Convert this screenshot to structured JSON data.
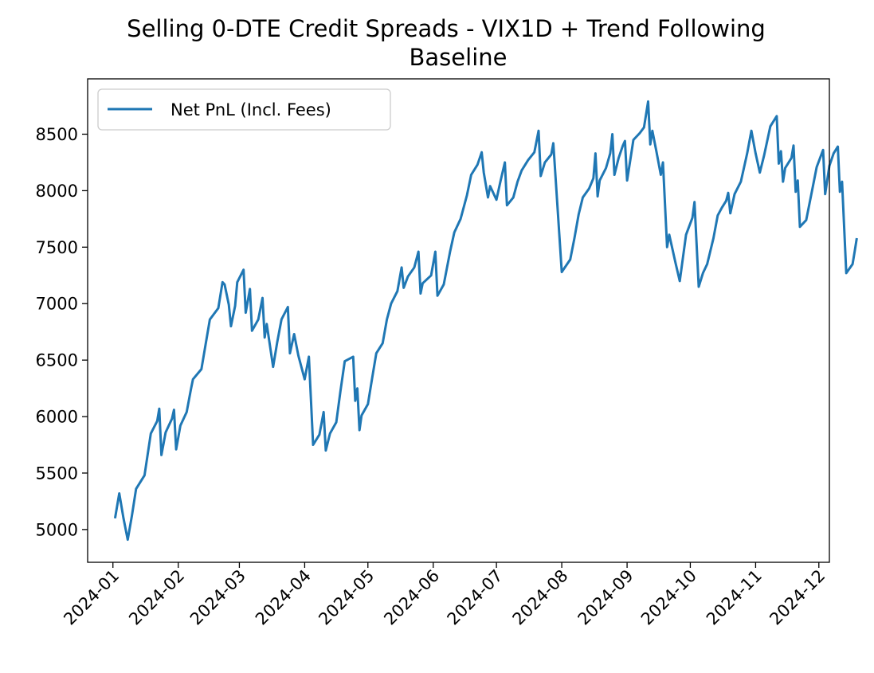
{
  "chart_data": {
    "type": "line",
    "title": "Selling 0-DTE Credit Spreads - VIX1D + Trend Following",
    "subtitle": "Baseline",
    "xlabel": "",
    "ylabel": "",
    "grid": false,
    "legend": {
      "placement": "upper-left",
      "entries": [
        "Net PnL (Incl. Fees)"
      ]
    },
    "line_color": "#1f77b4",
    "xlim": [
      "2023-12-20",
      "2024-12-06"
    ],
    "ylim": [
      4710,
      8990
    ],
    "x_ticks": [
      "2024-01-01",
      "2024-02-01",
      "2024-03-01",
      "2024-04-01",
      "2024-05-01",
      "2024-06-01",
      "2024-07-01",
      "2024-08-01",
      "2024-09-01",
      "2024-10-01",
      "2024-11-01",
      "2024-12-01"
    ],
    "x_tick_labels": [
      "2024-01",
      "2024-02",
      "2024-03",
      "2024-04",
      "2024-05",
      "2024-06",
      "2024-07",
      "2024-08",
      "2024-09",
      "2024-10",
      "2024-11",
      "2024-12"
    ],
    "y_ticks": [
      5000,
      5500,
      6000,
      6500,
      7000,
      7500,
      8000,
      8500
    ],
    "y_tick_labels": [
      "5000",
      "5500",
      "6000",
      "6500",
      "7000",
      "7500",
      "8000",
      "8500"
    ],
    "series": [
      {
        "name": "Net PnL (Incl. Fees)",
        "points": [
          [
            "2024-01-02",
            5100
          ],
          [
            "2024-01-04",
            5320
          ],
          [
            "2024-01-06",
            5100
          ],
          [
            "2024-01-08",
            4910
          ],
          [
            "2024-01-10",
            5120
          ],
          [
            "2024-01-12",
            5360
          ],
          [
            "2024-01-16",
            5480
          ],
          [
            "2024-01-19",
            5850
          ],
          [
            "2024-01-22",
            5960
          ],
          [
            "2024-01-23",
            6070
          ],
          [
            "2024-01-24",
            5660
          ],
          [
            "2024-01-26",
            5860
          ],
          [
            "2024-01-29",
            5980
          ],
          [
            "2024-01-30",
            6060
          ],
          [
            "2024-01-31",
            5710
          ],
          [
            "2024-02-02",
            5920
          ],
          [
            "2024-02-05",
            6040
          ],
          [
            "2024-02-07",
            6240
          ],
          [
            "2024-02-08",
            6330
          ],
          [
            "2024-02-12",
            6420
          ],
          [
            "2024-02-14",
            6640
          ],
          [
            "2024-02-16",
            6860
          ],
          [
            "2024-02-20",
            6960
          ],
          [
            "2024-02-22",
            7190
          ],
          [
            "2024-02-23",
            7170
          ],
          [
            "2024-02-25",
            6990
          ],
          [
            "2024-02-26",
            6800
          ],
          [
            "2024-02-28",
            6980
          ],
          [
            "2024-02-29",
            7190
          ],
          [
            "2024-03-03",
            7300
          ],
          [
            "2024-03-04",
            6920
          ],
          [
            "2024-03-06",
            7130
          ],
          [
            "2024-03-07",
            6760
          ],
          [
            "2024-03-10",
            6860
          ],
          [
            "2024-03-12",
            7050
          ],
          [
            "2024-03-13",
            6700
          ],
          [
            "2024-03-14",
            6820
          ],
          [
            "2024-03-17",
            6440
          ],
          [
            "2024-03-19",
            6660
          ],
          [
            "2024-03-21",
            6860
          ],
          [
            "2024-03-24",
            6970
          ],
          [
            "2024-03-25",
            6560
          ],
          [
            "2024-03-27",
            6730
          ],
          [
            "2024-03-29",
            6540
          ],
          [
            "2024-04-01",
            6330
          ],
          [
            "2024-04-03",
            6530
          ],
          [
            "2024-04-05",
            5750
          ],
          [
            "2024-04-08",
            5840
          ],
          [
            "2024-04-10",
            6040
          ],
          [
            "2024-04-11",
            5700
          ],
          [
            "2024-04-13",
            5850
          ],
          [
            "2024-04-16",
            5950
          ],
          [
            "2024-04-18",
            6230
          ],
          [
            "2024-04-20",
            6490
          ],
          [
            "2024-04-24",
            6530
          ],
          [
            "2024-04-25",
            6140
          ],
          [
            "2024-04-26",
            6250
          ],
          [
            "2024-04-27",
            5880
          ],
          [
            "2024-04-28",
            6010
          ],
          [
            "2024-05-01",
            6110
          ],
          [
            "2024-05-03",
            6340
          ],
          [
            "2024-05-05",
            6560
          ],
          [
            "2024-05-08",
            6650
          ],
          [
            "2024-05-10",
            6860
          ],
          [
            "2024-05-12",
            7000
          ],
          [
            "2024-05-15",
            7110
          ],
          [
            "2024-05-17",
            7320
          ],
          [
            "2024-05-18",
            7140
          ],
          [
            "2024-05-20",
            7240
          ],
          [
            "2024-05-23",
            7320
          ],
          [
            "2024-05-25",
            7460
          ],
          [
            "2024-05-26",
            7090
          ],
          [
            "2024-05-27",
            7180
          ],
          [
            "2024-05-31",
            7250
          ],
          [
            "2024-06-02",
            7460
          ],
          [
            "2024-06-03",
            7070
          ],
          [
            "2024-06-06",
            7170
          ],
          [
            "2024-06-09",
            7460
          ],
          [
            "2024-06-11",
            7630
          ],
          [
            "2024-06-14",
            7750
          ],
          [
            "2024-06-17",
            7960
          ],
          [
            "2024-06-19",
            8140
          ],
          [
            "2024-06-22",
            8230
          ],
          [
            "2024-06-24",
            8340
          ],
          [
            "2024-06-25",
            8160
          ],
          [
            "2024-06-27",
            7940
          ],
          [
            "2024-06-28",
            8040
          ],
          [
            "2024-07-01",
            7920
          ],
          [
            "2024-07-03",
            8090
          ],
          [
            "2024-07-05",
            8250
          ],
          [
            "2024-07-06",
            7870
          ],
          [
            "2024-07-09",
            7940
          ],
          [
            "2024-07-11",
            8080
          ],
          [
            "2024-07-13",
            8180
          ],
          [
            "2024-07-16",
            8270
          ],
          [
            "2024-07-19",
            8340
          ],
          [
            "2024-07-21",
            8530
          ],
          [
            "2024-07-22",
            8130
          ],
          [
            "2024-07-24",
            8250
          ],
          [
            "2024-07-27",
            8320
          ],
          [
            "2024-07-28",
            8420
          ],
          [
            "2024-08-01",
            7280
          ],
          [
            "2024-08-05",
            7390
          ],
          [
            "2024-08-07",
            7580
          ],
          [
            "2024-08-09",
            7790
          ],
          [
            "2024-08-11",
            7940
          ],
          [
            "2024-08-14",
            8020
          ],
          [
            "2024-08-16",
            8110
          ],
          [
            "2024-08-17",
            8330
          ],
          [
            "2024-08-18",
            7950
          ],
          [
            "2024-08-19",
            8090
          ],
          [
            "2024-08-22",
            8200
          ],
          [
            "2024-08-24",
            8330
          ],
          [
            "2024-08-25",
            8500
          ],
          [
            "2024-08-26",
            8140
          ],
          [
            "2024-08-28",
            8290
          ],
          [
            "2024-08-30",
            8400
          ],
          [
            "2024-08-31",
            8440
          ],
          [
            "2024-09-01",
            8090
          ],
          [
            "2024-09-03",
            8330
          ],
          [
            "2024-09-04",
            8450
          ],
          [
            "2024-09-07",
            8510
          ],
          [
            "2024-09-09",
            8560
          ],
          [
            "2024-09-11",
            8790
          ],
          [
            "2024-09-12",
            8410
          ],
          [
            "2024-09-13",
            8530
          ],
          [
            "2024-09-15",
            8340
          ],
          [
            "2024-09-17",
            8140
          ],
          [
            "2024-09-18",
            8250
          ],
          [
            "2024-09-20",
            7500
          ],
          [
            "2024-09-21",
            7610
          ],
          [
            "2024-09-24",
            7360
          ],
          [
            "2024-09-26",
            7200
          ],
          [
            "2024-09-29",
            7610
          ],
          [
            "2024-10-02",
            7760
          ],
          [
            "2024-10-03",
            7900
          ],
          [
            "2024-10-05",
            7150
          ],
          [
            "2024-10-07",
            7270
          ],
          [
            "2024-10-09",
            7350
          ],
          [
            "2024-10-12",
            7580
          ],
          [
            "2024-10-14",
            7780
          ],
          [
            "2024-10-16",
            7850
          ],
          [
            "2024-10-18",
            7910
          ],
          [
            "2024-10-19",
            7980
          ],
          [
            "2024-10-20",
            7800
          ],
          [
            "2024-10-22",
            7970
          ],
          [
            "2024-10-25",
            8080
          ],
          [
            "2024-10-28",
            8330
          ],
          [
            "2024-10-30",
            8530
          ],
          [
            "2024-11-01",
            8330
          ],
          [
            "2024-11-03",
            8160
          ],
          [
            "2024-11-05",
            8310
          ],
          [
            "2024-11-08",
            8570
          ],
          [
            "2024-11-11",
            8660
          ],
          [
            "2024-11-12",
            8240
          ],
          [
            "2024-11-13",
            8350
          ],
          [
            "2024-11-14",
            8080
          ],
          [
            "2024-11-15",
            8200
          ],
          [
            "2024-11-18",
            8290
          ],
          [
            "2024-11-19",
            8400
          ],
          [
            "2024-11-20",
            7990
          ],
          [
            "2024-11-21",
            8090
          ],
          [
            "2024-11-22",
            7680
          ],
          [
            "2024-11-25",
            7740
          ],
          [
            "2024-11-28",
            8020
          ],
          [
            "2024-11-30",
            8210
          ],
          [
            "2024-12-03",
            8360
          ],
          [
            "2024-12-04",
            7970
          ],
          [
            "2024-12-06",
            8220
          ],
          [
            "2024-12-08",
            8330
          ],
          [
            "2024-12-10",
            8390
          ],
          [
            "2024-12-11",
            7990
          ],
          [
            "2024-12-12",
            8080
          ],
          [
            "2024-12-14",
            7270
          ],
          [
            "2024-12-17",
            7350
          ],
          [
            "2024-12-18",
            7460
          ],
          [
            "2024-12-19",
            7580
          ]
        ]
      }
    ]
  }
}
